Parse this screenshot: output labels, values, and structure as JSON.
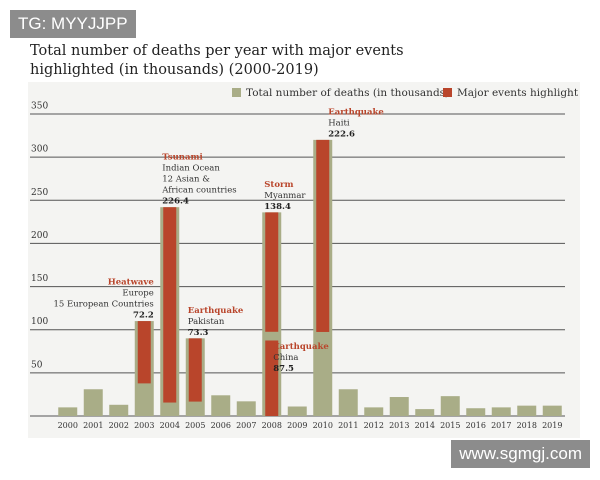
{
  "chart_data": {
    "type": "bar",
    "title": [
      "Total number of deaths per year with major events",
      "highlighted (in thousands) (2000-2019)"
    ],
    "categories": [
      "2000",
      "2001",
      "2002",
      "2003",
      "2004",
      "2005",
      "2006",
      "2007",
      "2008",
      "2009",
      "2010",
      "2011",
      "2012",
      "2013",
      "2014",
      "2015",
      "2016",
      "2017",
      "2018",
      "2019"
    ],
    "series": [
      {
        "name": "Total number of deaths (in thousands)",
        "color": "#a9ad87",
        "values": [
          10,
          31,
          13,
          110,
          242,
          90,
          24,
          17,
          236,
          11,
          320,
          31,
          10,
          22,
          8,
          23,
          9,
          10,
          12,
          12
        ]
      },
      {
        "name": "Major events highlight",
        "color": "#b9452b",
        "events": [
          {
            "category": "2003",
            "event": "Heatwave",
            "details": [
              "Europe",
              "15 European Countries"
            ],
            "value": 72.2
          },
          {
            "category": "2004",
            "event": "Tsunami",
            "details": [
              "Indian Ocean",
              "12 Asian &",
              "African countries"
            ],
            "value": 226.4
          },
          {
            "category": "2005",
            "event": "Earthquake",
            "details": [
              "Pakistan"
            ],
            "value": 73.3
          },
          {
            "category": "2008",
            "event": "Storm",
            "details": [
              "Myanmar"
            ],
            "value": 138.4
          },
          {
            "category": "2008",
            "event": "Earthquake",
            "details": [
              "China"
            ],
            "value": 87.5
          },
          {
            "category": "2010",
            "event": "Earthquake",
            "details": [
              "Haiti"
            ],
            "value": 222.6
          }
        ]
      }
    ],
    "ylim": [
      0,
      350
    ],
    "yticks": [
      50,
      100,
      150,
      200,
      250,
      300,
      350
    ],
    "grid": true
  },
  "watermarks": [
    "TG: MYYJJPP",
    "www.sgmgj.com"
  ]
}
